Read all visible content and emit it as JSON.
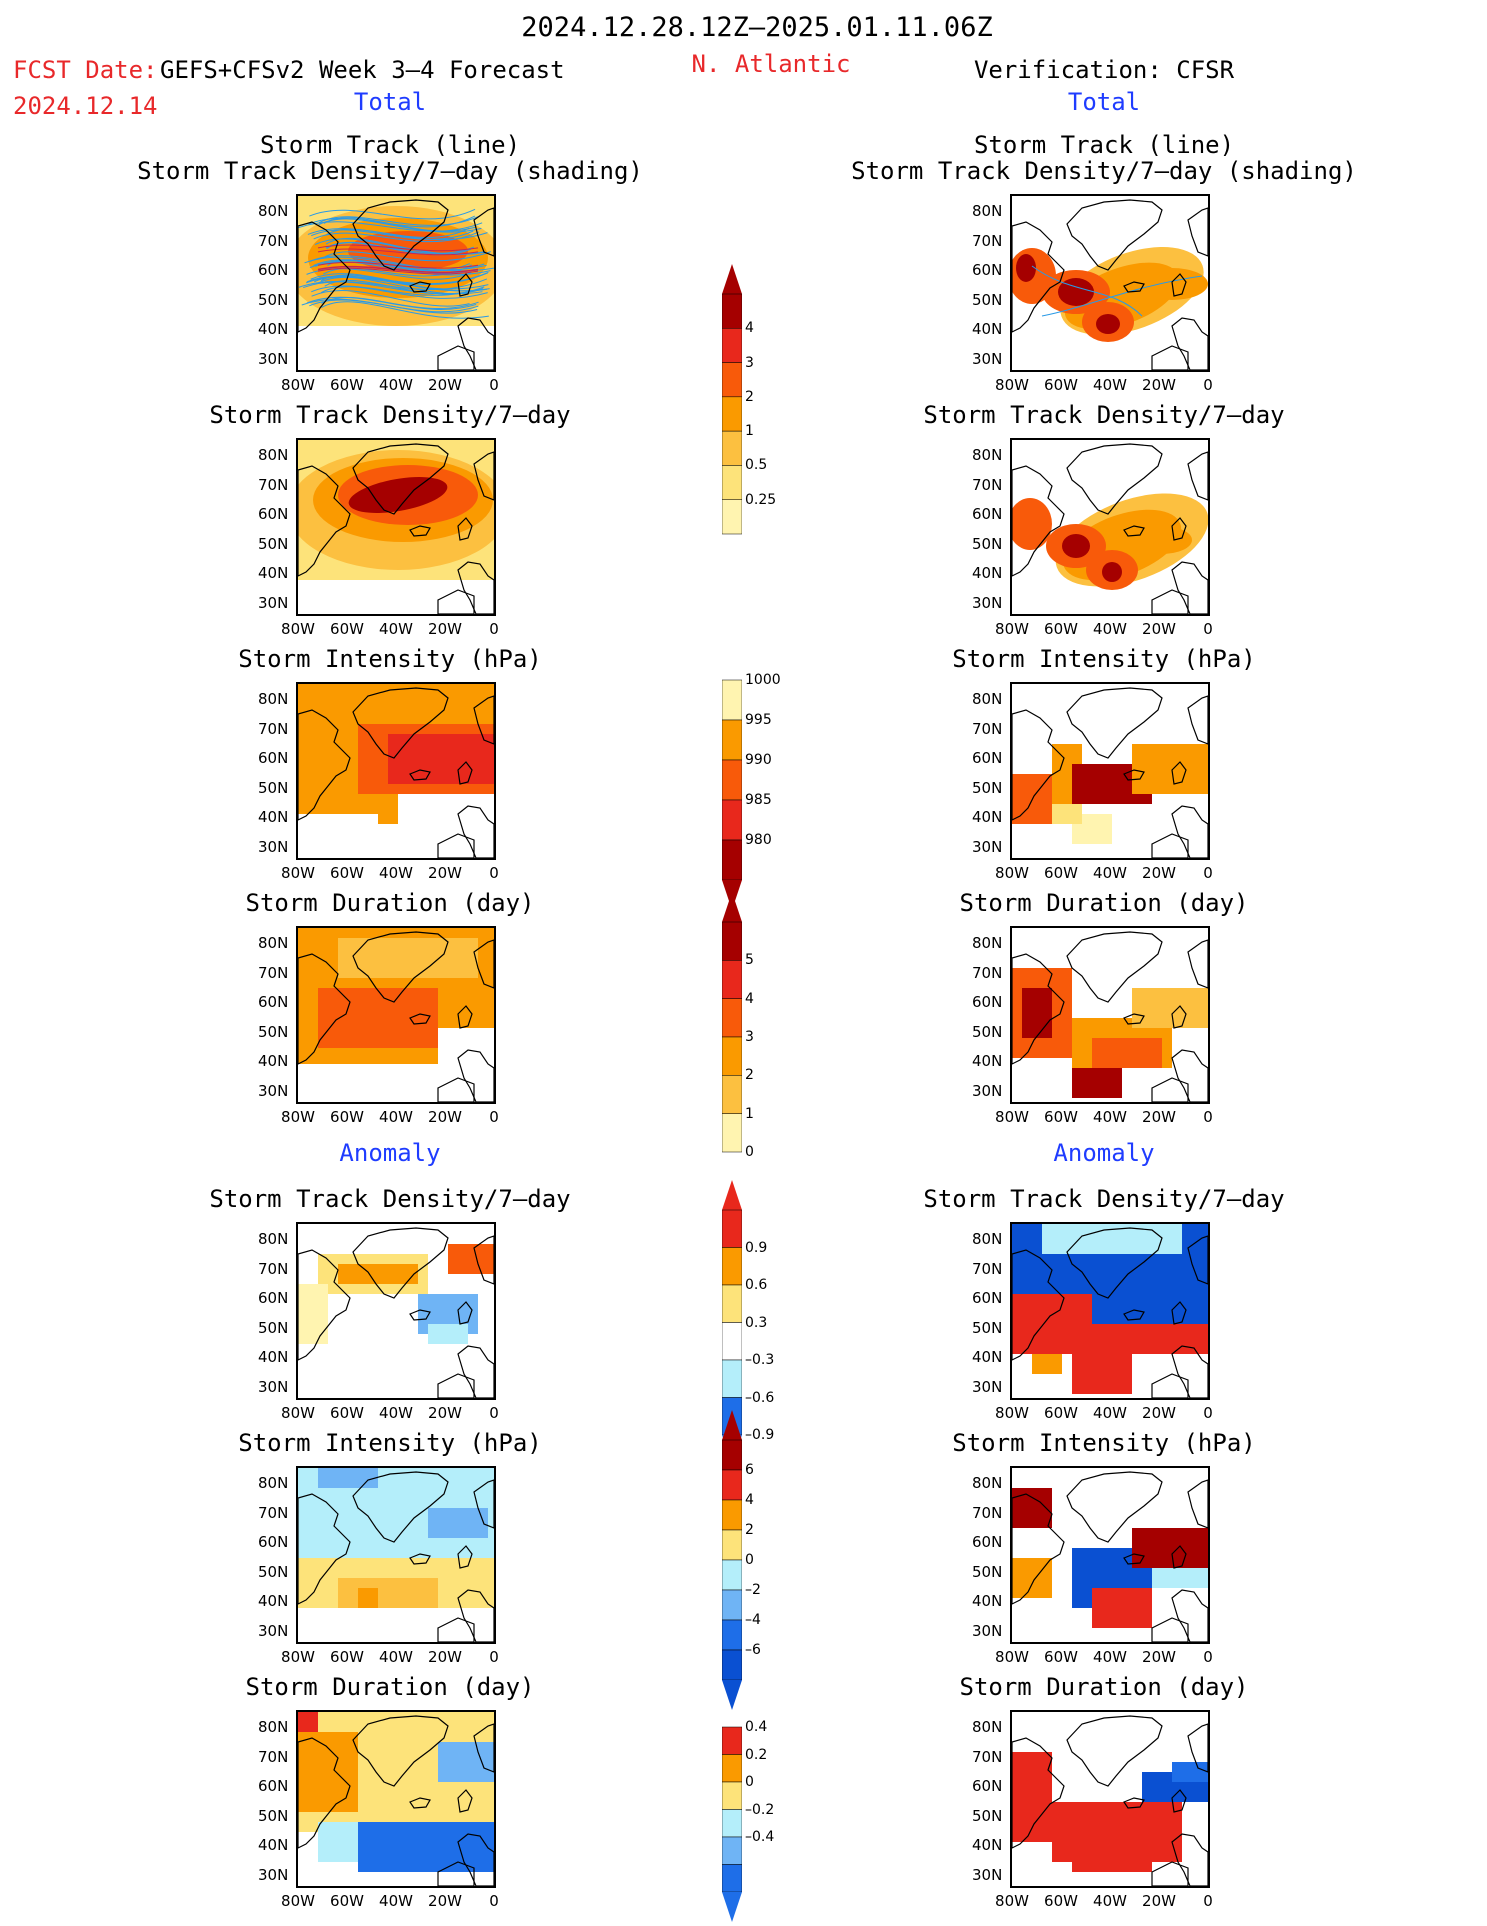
{
  "header": {
    "date_range": "2024.12.28.12Z–2025.01.11.06Z",
    "fcst_label": "FCST Date:",
    "forecast_desc": "GEFS+CFSv2 Week 3–4 Forecast",
    "fcst_date": "2024.12.14",
    "region": "N. Atlantic",
    "verification": "Verification: CFSR"
  },
  "sections": {
    "total_left": "Total",
    "total_right": "Total",
    "anomaly_left": "Anomaly",
    "anomaly_right": "Anomaly"
  },
  "panel_titles": {
    "storm_track_line": "Storm Track (line)",
    "storm_track_shading": "Storm Track Density/7–day (shading)",
    "density": "Storm Track Density/7–day",
    "intensity": "Storm Intensity (hPa)",
    "duration": "Storm Duration (day)"
  },
  "axes": {
    "lat_ticks": [
      "80N",
      "70N",
      "60N",
      "50N",
      "40N",
      "30N"
    ],
    "lon_ticks": [
      "80W",
      "60W",
      "40W",
      "20W",
      "0"
    ]
  },
  "colorbars": {
    "density_total": [
      "4",
      "3",
      "2",
      "1",
      "0.5",
      "0.25"
    ],
    "intensity_total": [
      "1000",
      "995",
      "990",
      "985",
      "980"
    ],
    "duration_total": [
      "5",
      "4",
      "3",
      "2",
      "1",
      "0"
    ],
    "density_anom": [
      "0.9",
      "0.6",
      "0.3",
      "–0.3",
      "–0.6",
      "–0.9"
    ],
    "intensity_anom": [
      "6",
      "4",
      "2",
      "0",
      "–2",
      "–4",
      "–6"
    ],
    "duration_anom": [
      "0.4",
      "0.2",
      "0",
      "–0.2",
      "–0.4"
    ]
  },
  "colors": {
    "dark_red": "#a50000",
    "red": "#e8281c",
    "orange_red": "#f85a0a",
    "orange": "#fa9a00",
    "light_orange": "#fcc040",
    "yellow": "#fde37a",
    "pale_yellow": "#fff4b0",
    "light_blue": "#b4eefa",
    "mid_blue": "#6fb4f5",
    "blue": "#1e6ee8",
    "dark_blue": "#0a50d2",
    "track_blue": "#2a9ae6",
    "track_red": "#c82850"
  }
}
